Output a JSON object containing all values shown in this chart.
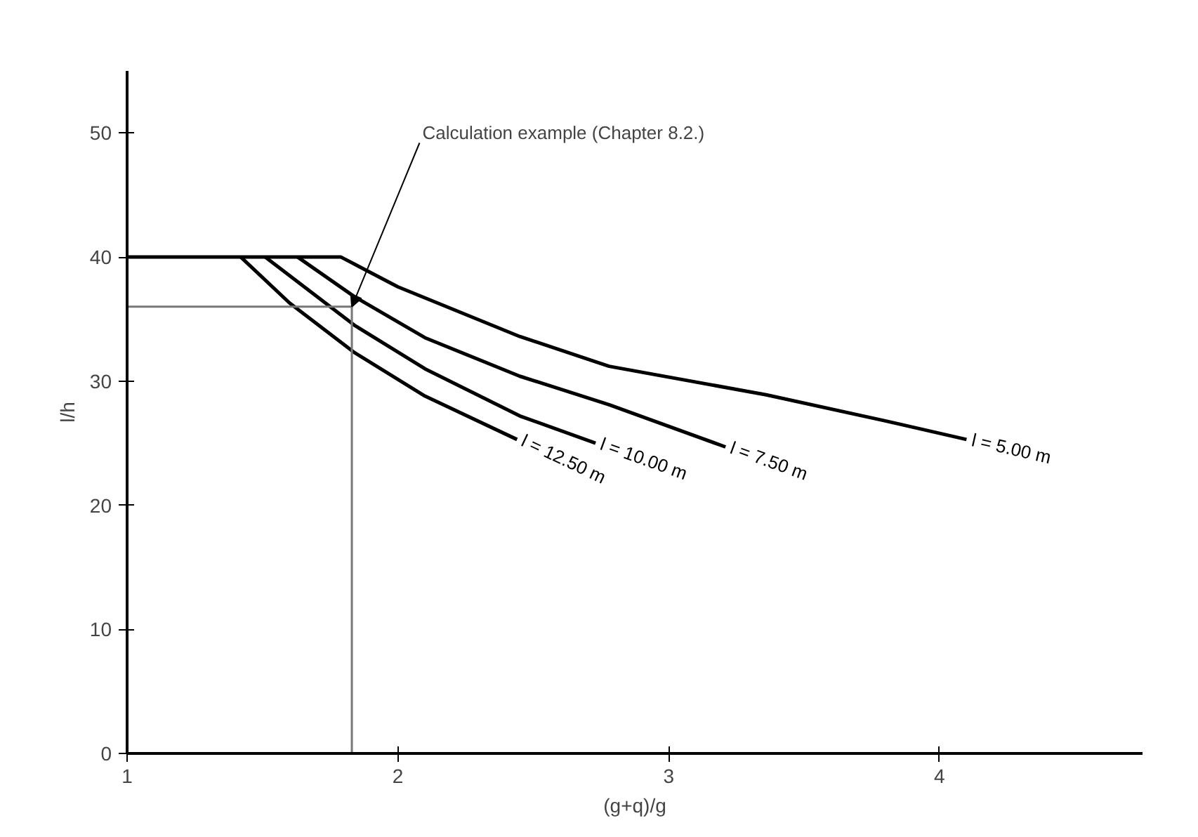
{
  "chart_data": {
    "type": "line",
    "xlabel": "(g+q)/g",
    "ylabel": "l/h",
    "xlim": [
      1,
      4.75
    ],
    "ylim": [
      0,
      55
    ],
    "xticks": [
      1,
      2,
      3,
      4
    ],
    "yticks": [
      0,
      10,
      20,
      30,
      40,
      50
    ],
    "grid": false,
    "marker": "none",
    "line_style": "solid",
    "series": [
      {
        "name": "l = 5.00 m",
        "color": "#000000",
        "x": [
          1.0,
          1.79,
          2.0,
          2.45,
          2.78,
          3.36,
          3.8,
          4.1
        ],
        "values": [
          40,
          40,
          37.6,
          33.6,
          31.2,
          28.9,
          26.8,
          25.3
        ]
      },
      {
        "name": "l = 7.50 m",
        "color": "#000000",
        "x": [
          1.63,
          1.84,
          2.1,
          2.45,
          2.78,
          3.21
        ],
        "values": [
          40,
          36.8,
          33.5,
          30.4,
          28.1,
          24.7
        ]
      },
      {
        "name": "l = 10.00 m",
        "color": "#000000",
        "x": [
          1.51,
          1.84,
          2.1,
          2.45,
          2.73
        ],
        "values": [
          40,
          34.5,
          31.0,
          27.2,
          25.0
        ]
      },
      {
        "name": "l = 12.50 m",
        "color": "#000000",
        "x": [
          1.42,
          1.6,
          1.84,
          2.1,
          2.44
        ],
        "values": [
          40,
          36.3,
          32.3,
          28.8,
          25.3
        ]
      },
      {
        "color": "#777777",
        "x": [
          1.0,
          1.83,
          1.83
        ],
        "values": [
          36,
          36,
          0
        ]
      }
    ],
    "annotations": [
      {
        "text": "Calculation example (Chapter 8.2.)",
        "x": 1.83,
        "y": 36
      }
    ]
  }
}
